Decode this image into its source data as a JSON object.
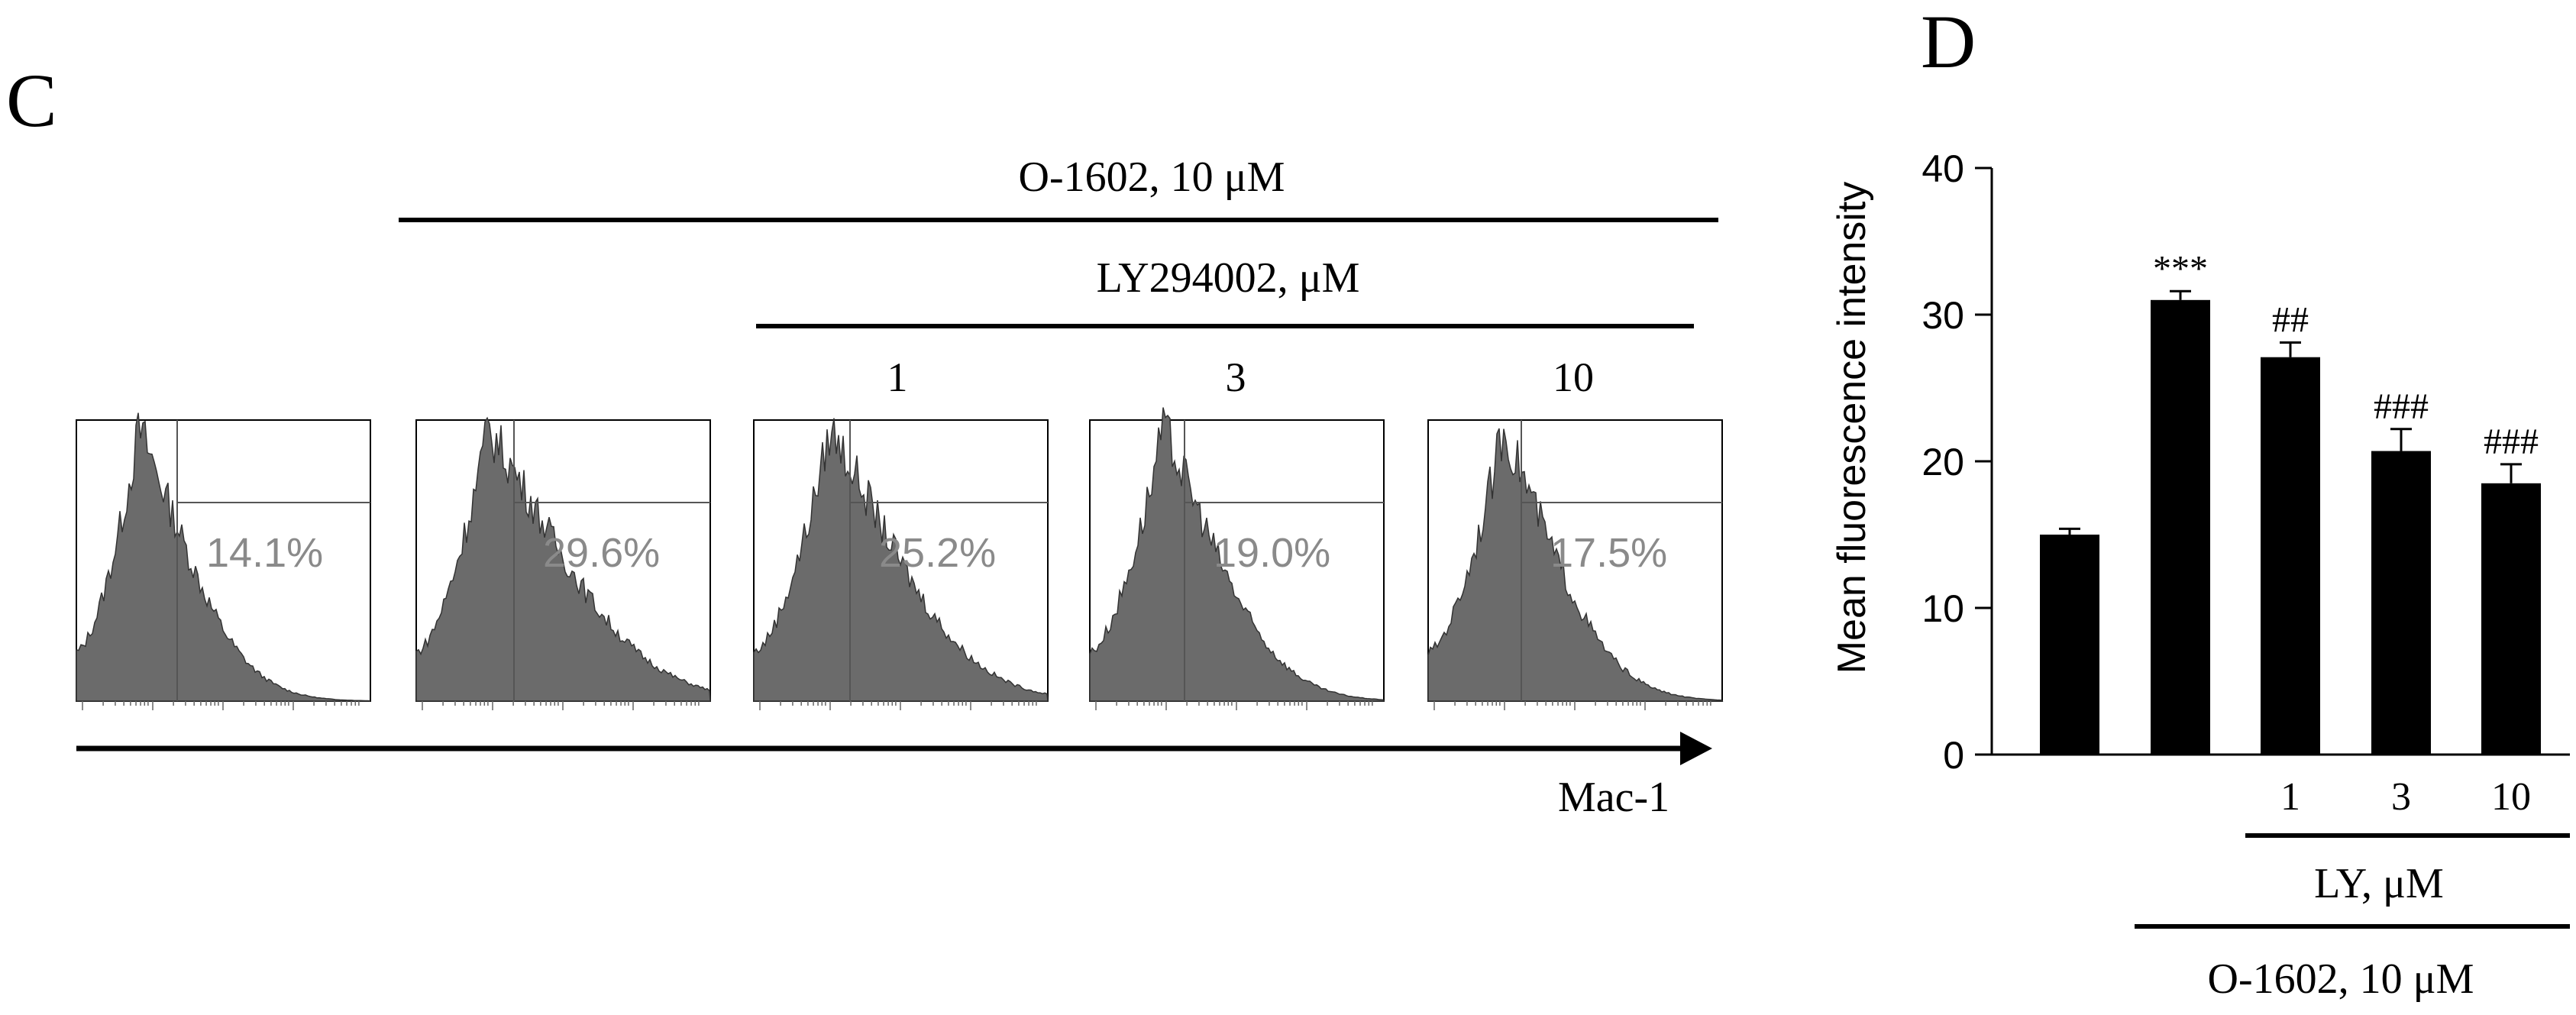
{
  "panel_c": {
    "letter": "C",
    "top_bracket_label": "O-1602, 10 μM",
    "sub_bracket_label": "LY294002, μM",
    "concentrations": [
      "1",
      "3",
      "10"
    ],
    "axis_label": "Mac-1",
    "histograms": [
      {
        "percent": "14.1%"
      },
      {
        "percent": "29.6%"
      },
      {
        "percent": "25.2%"
      },
      {
        "percent": "19.0%"
      },
      {
        "percent": "17.5%"
      }
    ]
  },
  "panel_d": {
    "letter": "D",
    "lower_bracket_1": "LY, μM",
    "lower_bracket_2": "O-1602, 10 μM"
  },
  "colors": {
    "bar": "#000000",
    "histogram_fill": "#6b6b6b",
    "percent_text": "#8a8a8a",
    "text": "#000000"
  },
  "chart_data": [
    {
      "type": "bar",
      "title": "",
      "xlabel": "",
      "ylabel": "Mean fluorescence intensity",
      "ylim": [
        0,
        40
      ],
      "yticks": [
        0,
        10,
        20,
        30,
        40
      ],
      "categories": [
        "",
        "",
        "1",
        "3",
        "10"
      ],
      "values": [
        15.0,
        31.0,
        27.1,
        20.7,
        18.5
      ],
      "errors": [
        0.4,
        0.6,
        1.0,
        1.5,
        1.3
      ],
      "annotations": [
        "",
        "***",
        "##",
        "###",
        "###"
      ],
      "grid": false,
      "legend": "none"
    }
  ]
}
